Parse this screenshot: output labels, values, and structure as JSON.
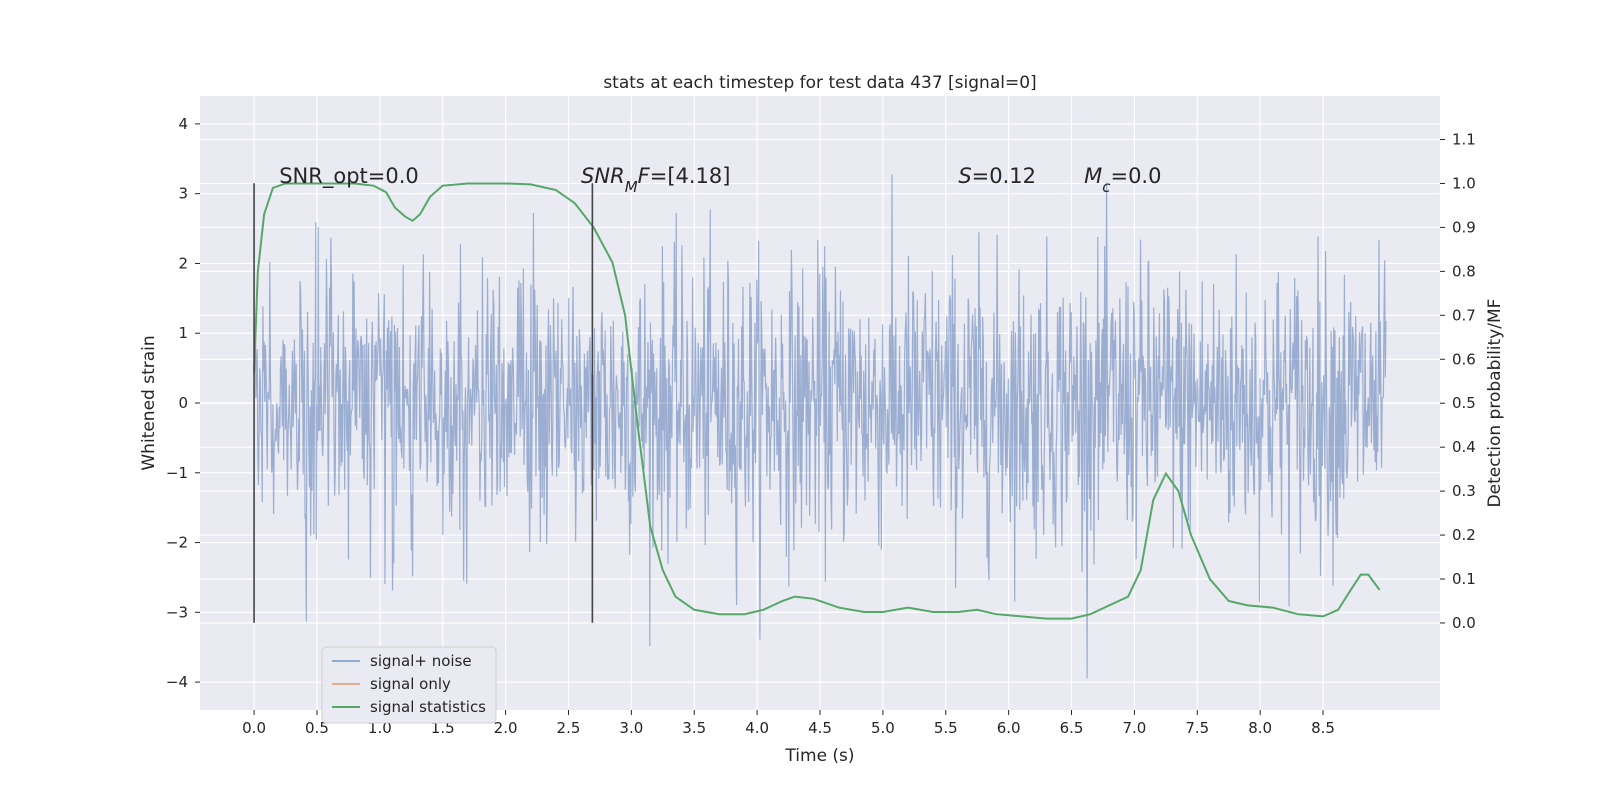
{
  "chart_data": {
    "type": "line",
    "title": "stats at each timestep for test data 437 [signal=0]",
    "xlabel": "Time (s)",
    "ylabel": "Whitened strain",
    "y2label": "Detection probability/MF",
    "xlim": [
      -0.43,
      9.43
    ],
    "ylim": [
      -4.4,
      4.4
    ],
    "y2lim": [
      -0.198,
      1.199
    ],
    "x_ticks": [
      0.0,
      0.5,
      1.0,
      1.5,
      2.0,
      2.5,
      3.0,
      3.5,
      4.0,
      4.5,
      5.0,
      5.5,
      6.0,
      6.5,
      7.0,
      7.5,
      8.0,
      8.5
    ],
    "x_tick_labels": [
      "0.0",
      "0.5",
      "1.0",
      "1.5",
      "2.0",
      "2.5",
      "3.0",
      "3.5",
      "4.0",
      "4.5",
      "5.0",
      "5.5",
      "6.0",
      "6.5",
      "7.0",
      "7.5",
      "8.0",
      "8.5"
    ],
    "y_ticks": [
      4,
      3,
      2,
      1,
      0,
      -1,
      -2,
      -3,
      -4
    ],
    "y_tick_labels": [
      "4",
      "3",
      "2",
      "1",
      "0",
      "−1",
      "−2",
      "−3",
      "−4"
    ],
    "y2_ticks": [
      1.1,
      1.0,
      0.9,
      0.8,
      0.7,
      0.6,
      0.5,
      0.4,
      0.3,
      0.2,
      0.1,
      0.0
    ],
    "y2_tick_labels": [
      "1.1",
      "1.0",
      "0.9",
      "0.8",
      "0.7",
      "0.6",
      "0.5",
      "0.4",
      "0.3",
      "0.2",
      "0.1",
      "0.0"
    ],
    "vertical_lines": [
      {
        "x": 0.0,
        "y_range": [
          -3.15,
          3.15
        ]
      },
      {
        "x": 2.69,
        "y_range": [
          -3.15,
          3.15
        ]
      }
    ],
    "annotations": [
      {
        "x": 0.2,
        "y": 3.15,
        "parts": [
          {
            "text": "SNR_opt=0.0",
            "italic": false
          }
        ]
      },
      {
        "x": 2.6,
        "y": 3.15,
        "parts": [
          {
            "text": "SNR",
            "italic": true
          },
          {
            "text": "M",
            "italic": true,
            "sub": true
          },
          {
            "text": "F",
            "italic": true
          },
          {
            "text": "=[4.18]",
            "italic": false
          }
        ]
      },
      {
        "x": 5.6,
        "y": 3.15,
        "parts": [
          {
            "text": "S",
            "italic": true
          },
          {
            "text": "=0.12",
            "italic": false
          }
        ]
      },
      {
        "x": 6.6,
        "y": 3.15,
        "parts": [
          {
            "text": "M",
            "italic": true
          },
          {
            "text": "c",
            "italic": true,
            "sub": true
          },
          {
            "text": "=0.0",
            "italic": false
          }
        ]
      }
    ],
    "series": [
      {
        "name": "signal+ noise",
        "color": "#4c72b0",
        "kind": "noise",
        "x_range": [
          0.0,
          9.0
        ],
        "samples": 1800,
        "sigma": 1.0
      },
      {
        "name": "signal only",
        "color": "#dd8452",
        "kind": "flat",
        "x": [],
        "y": []
      },
      {
        "name": "signal statistics",
        "color": "#55a868",
        "axis": "y2",
        "x": [
          0.0,
          0.03,
          0.08,
          0.15,
          0.25,
          0.4,
          0.6,
          0.8,
          0.95,
          1.05,
          1.12,
          1.2,
          1.26,
          1.32,
          1.4,
          1.5,
          1.7,
          2.0,
          2.2,
          2.4,
          2.55,
          2.7,
          2.85,
          2.95,
          3.05,
          3.15,
          3.25,
          3.35,
          3.5,
          3.7,
          3.9,
          4.05,
          4.2,
          4.3,
          4.45,
          4.65,
          4.85,
          5.0,
          5.2,
          5.4,
          5.6,
          5.75,
          5.9,
          6.1,
          6.3,
          6.5,
          6.65,
          6.8,
          6.95,
          7.05,
          7.15,
          7.25,
          7.35,
          7.45,
          7.6,
          7.75,
          7.9,
          8.1,
          8.3,
          8.5,
          8.62,
          8.72,
          8.8,
          8.86,
          8.95
        ],
        "y": [
          0.57,
          0.8,
          0.93,
          0.99,
          1.0,
          1.0,
          1.0,
          1.0,
          0.995,
          0.98,
          0.945,
          0.925,
          0.915,
          0.93,
          0.97,
          0.995,
          1.0,
          1.0,
          0.998,
          0.985,
          0.955,
          0.9,
          0.82,
          0.7,
          0.45,
          0.22,
          0.12,
          0.06,
          0.03,
          0.02,
          0.02,
          0.03,
          0.05,
          0.06,
          0.055,
          0.035,
          0.025,
          0.025,
          0.035,
          0.025,
          0.025,
          0.03,
          0.02,
          0.015,
          0.01,
          0.01,
          0.02,
          0.04,
          0.06,
          0.12,
          0.28,
          0.34,
          0.3,
          0.2,
          0.1,
          0.05,
          0.04,
          0.035,
          0.02,
          0.015,
          0.03,
          0.075,
          0.11,
          0.11,
          0.075
        ]
      }
    ]
  }
}
